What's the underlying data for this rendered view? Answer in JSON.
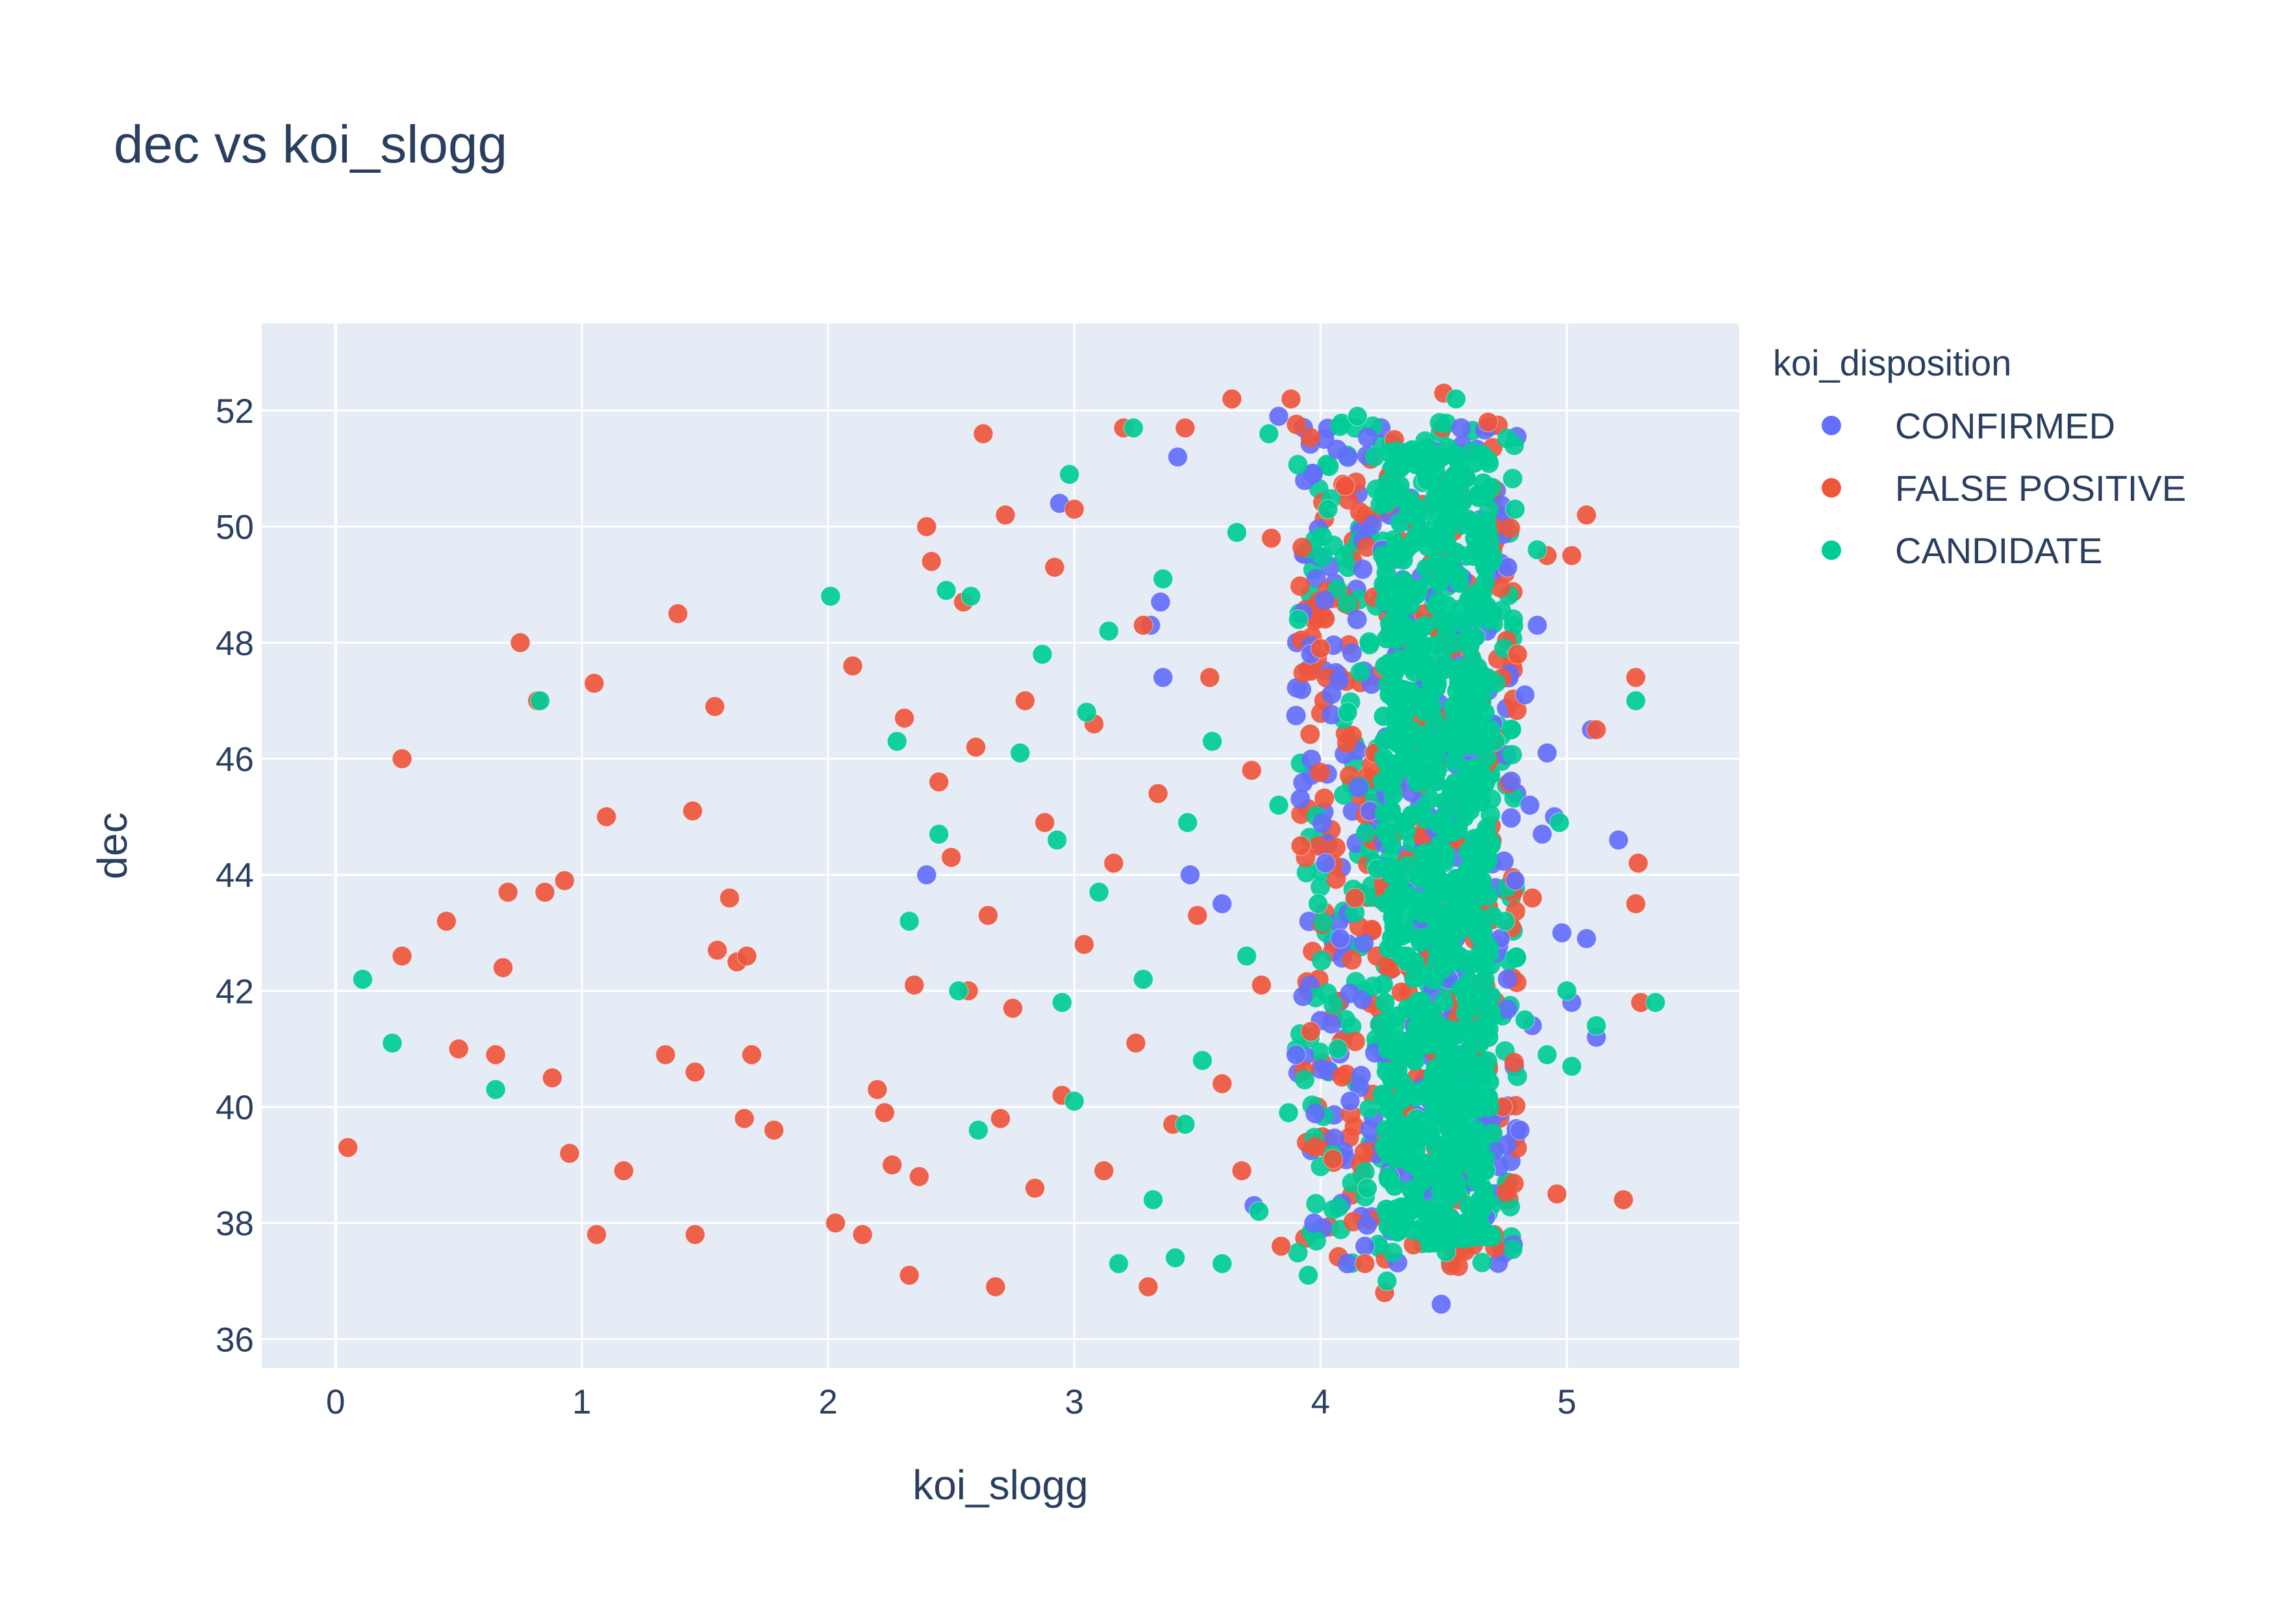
{
  "chart_data": {
    "type": "scatter",
    "title": "dec vs koi_slogg",
    "xlabel": "koi_slogg",
    "ylabel": "dec",
    "xlim": [
      -0.3,
      5.7
    ],
    "ylim": [
      35.5,
      53.5
    ],
    "x_ticks": [
      0,
      1,
      2,
      3,
      4,
      5
    ],
    "y_ticks": [
      36,
      38,
      40,
      42,
      44,
      46,
      48,
      50,
      52
    ],
    "grid": true,
    "background": "#e5ecf6",
    "legend": {
      "title": "koi_disposition",
      "position": "top-right"
    },
    "series": [
      {
        "name": "CONFIRMED",
        "color": "#636efa",
        "points": [
          [
            2.94,
            50.4
          ],
          [
            3.35,
            48.7
          ],
          [
            3.36,
            47.4
          ],
          [
            3.42,
            51.2
          ],
          [
            3.47,
            44.0
          ],
          [
            3.6,
            43.5
          ],
          [
            3.73,
            38.3
          ],
          [
            3.83,
            51.9
          ],
          [
            3.96,
            47.8
          ],
          [
            4.02,
            44.2
          ],
          [
            4.08,
            42.9
          ],
          [
            4.12,
            40.1
          ],
          [
            4.2,
            45.1
          ],
          [
            4.25,
            49.6
          ],
          [
            4.28,
            38.8
          ],
          [
            4.31,
            51.3
          ],
          [
            4.35,
            43.7
          ],
          [
            4.38,
            41.4
          ],
          [
            4.41,
            47.2
          ],
          [
            4.44,
            39.5
          ],
          [
            4.46,
            48.8
          ],
          [
            4.49,
            36.6
          ],
          [
            4.52,
            42.2
          ],
          [
            4.55,
            45.9
          ],
          [
            4.58,
            40.6
          ],
          [
            4.61,
            50.1
          ],
          [
            4.64,
            44.6
          ],
          [
            4.67,
            38.1
          ],
          [
            4.7,
            46.6
          ],
          [
            4.73,
            42.9
          ],
          [
            4.76,
            49.3
          ],
          [
            4.79,
            43.9
          ],
          [
            4.81,
            39.6
          ],
          [
            4.83,
            47.1
          ],
          [
            4.85,
            45.2
          ],
          [
            4.86,
            41.4
          ],
          [
            4.88,
            48.3
          ],
          [
            4.9,
            44.7
          ],
          [
            4.92,
            46.1
          ],
          [
            4.95,
            45.0
          ],
          [
            4.98,
            43.0
          ],
          [
            5.02,
            41.8
          ],
          [
            5.08,
            42.9
          ],
          [
            5.1,
            46.5
          ],
          [
            5.12,
            41.2
          ],
          [
            5.21,
            44.6
          ],
          [
            2.4,
            44.0
          ],
          [
            3.31,
            48.3
          ],
          [
            3.9,
            40.9
          ],
          [
            4.18,
            37.6
          ]
        ]
      },
      {
        "name": "FALSE POSITIVE",
        "color": "#ef553b",
        "points": [
          [
            0.05,
            39.3
          ],
          [
            0.27,
            46.0
          ],
          [
            0.27,
            42.6
          ],
          [
            0.45,
            43.2
          ],
          [
            0.5,
            41.0
          ],
          [
            0.65,
            40.9
          ],
          [
            0.68,
            42.4
          ],
          [
            0.7,
            43.7
          ],
          [
            0.75,
            48.0
          ],
          [
            0.82,
            47.0
          ],
          [
            0.85,
            43.7
          ],
          [
            0.88,
            40.5
          ],
          [
            0.93,
            43.9
          ],
          [
            0.95,
            39.2
          ],
          [
            1.05,
            47.3
          ],
          [
            1.06,
            37.8
          ],
          [
            1.1,
            45.0
          ],
          [
            1.17,
            38.9
          ],
          [
            1.34,
            40.9
          ],
          [
            1.39,
            48.5
          ],
          [
            1.45,
            45.1
          ],
          [
            1.46,
            40.6
          ],
          [
            1.46,
            37.8
          ],
          [
            1.54,
            46.9
          ],
          [
            1.55,
            42.7
          ],
          [
            1.6,
            43.6
          ],
          [
            1.63,
            42.5
          ],
          [
            1.67,
            42.6
          ],
          [
            1.69,
            40.9
          ],
          [
            1.66,
            39.8
          ],
          [
            1.78,
            39.6
          ],
          [
            2.03,
            38.0
          ],
          [
            2.1,
            47.6
          ],
          [
            2.14,
            37.8
          ],
          [
            2.2,
            40.3
          ],
          [
            2.23,
            39.9
          ],
          [
            2.31,
            46.7
          ],
          [
            2.35,
            42.1
          ],
          [
            2.37,
            38.8
          ],
          [
            2.42,
            49.4
          ],
          [
            2.4,
            50.0
          ],
          [
            2.45,
            45.6
          ],
          [
            2.5,
            44.3
          ],
          [
            2.55,
            48.7
          ],
          [
            2.6,
            46.2
          ],
          [
            2.63,
            51.6
          ],
          [
            2.65,
            43.3
          ],
          [
            2.68,
            36.9
          ],
          [
            2.72,
            50.2
          ],
          [
            2.75,
            41.7
          ],
          [
            2.8,
            47.0
          ],
          [
            2.84,
            38.6
          ],
          [
            2.88,
            44.9
          ],
          [
            2.92,
            49.3
          ],
          [
            2.95,
            40.2
          ],
          [
            3.0,
            50.3
          ],
          [
            3.04,
            42.8
          ],
          [
            3.08,
            46.6
          ],
          [
            3.12,
            38.9
          ],
          [
            3.16,
            44.2
          ],
          [
            3.2,
            51.7
          ],
          [
            3.25,
            41.1
          ],
          [
            3.28,
            48.3
          ],
          [
            3.3,
            36.9
          ],
          [
            3.34,
            45.4
          ],
          [
            3.4,
            39.7
          ],
          [
            3.45,
            51.7
          ],
          [
            3.5,
            43.3
          ],
          [
            3.55,
            47.4
          ],
          [
            3.6,
            40.4
          ],
          [
            3.64,
            52.2
          ],
          [
            3.68,
            38.9
          ],
          [
            3.72,
            45.8
          ],
          [
            3.76,
            42.1
          ],
          [
            3.8,
            49.8
          ],
          [
            3.84,
            37.6
          ],
          [
            3.88,
            52.2
          ],
          [
            3.92,
            44.5
          ],
          [
            3.96,
            41.3
          ],
          [
            4.0,
            47.9
          ],
          [
            4.05,
            39.1
          ],
          [
            4.1,
            50.7
          ],
          [
            4.14,
            43.6
          ],
          [
            4.18,
            37.3
          ],
          [
            4.22,
            46.1
          ],
          [
            4.26,
            36.8
          ],
          [
            4.3,
            51.5
          ],
          [
            4.36,
            42.4
          ],
          [
            4.42,
            48.5
          ],
          [
            4.5,
            52.3
          ],
          [
            4.56,
            38.4
          ],
          [
            4.62,
            45.5
          ],
          [
            4.68,
            51.8
          ],
          [
            4.74,
            40.0
          ],
          [
            4.8,
            47.8
          ],
          [
            4.86,
            43.6
          ],
          [
            4.92,
            49.5
          ],
          [
            4.96,
            38.5
          ],
          [
            5.02,
            49.5
          ],
          [
            5.08,
            50.2
          ],
          [
            5.12,
            46.5
          ],
          [
            5.23,
            38.4
          ],
          [
            5.28,
            47.4
          ],
          [
            5.29,
            44.2
          ],
          [
            5.28,
            43.5
          ],
          [
            5.3,
            41.8
          ],
          [
            2.26,
            39.0
          ],
          [
            2.33,
            37.1
          ],
          [
            2.57,
            42.0
          ],
          [
            2.7,
            39.8
          ]
        ]
      },
      {
        "name": "CANDIDATE",
        "color": "#00cc96",
        "points": [
          [
            0.11,
            42.2
          ],
          [
            0.23,
            41.1
          ],
          [
            0.65,
            40.3
          ],
          [
            0.83,
            47.0
          ],
          [
            2.01,
            48.8
          ],
          [
            2.28,
            46.3
          ],
          [
            2.33,
            43.2
          ],
          [
            2.48,
            48.9
          ],
          [
            2.53,
            42.0
          ],
          [
            2.58,
            48.8
          ],
          [
            2.61,
            39.6
          ],
          [
            2.78,
            46.1
          ],
          [
            2.87,
            47.8
          ],
          [
            2.93,
            44.6
          ],
          [
            2.98,
            50.9
          ],
          [
            3.0,
            40.1
          ],
          [
            3.05,
            46.8
          ],
          [
            3.1,
            43.7
          ],
          [
            3.18,
            37.3
          ],
          [
            3.24,
            51.7
          ],
          [
            3.28,
            42.2
          ],
          [
            3.32,
            38.4
          ],
          [
            3.36,
            49.1
          ],
          [
            3.41,
            37.4
          ],
          [
            3.46,
            44.9
          ],
          [
            3.52,
            40.8
          ],
          [
            3.56,
            46.3
          ],
          [
            3.6,
            37.3
          ],
          [
            3.66,
            49.9
          ],
          [
            3.7,
            42.6
          ],
          [
            3.75,
            38.2
          ],
          [
            3.79,
            51.6
          ],
          [
            3.83,
            45.2
          ],
          [
            3.87,
            39.9
          ],
          [
            3.91,
            48.4
          ],
          [
            3.95,
            37.1
          ],
          [
            3.99,
            43.5
          ],
          [
            4.03,
            50.3
          ],
          [
            4.07,
            41.0
          ],
          [
            4.11,
            46.8
          ],
          [
            4.15,
            51.9
          ],
          [
            4.19,
            38.6
          ],
          [
            4.23,
            44.1
          ],
          [
            4.27,
            37.0
          ],
          [
            4.31,
            48.9
          ],
          [
            4.35,
            42.5
          ],
          [
            4.39,
            39.8
          ],
          [
            4.43,
            50.8
          ],
          [
            4.47,
            45.6
          ],
          [
            4.51,
            37.5
          ],
          [
            4.55,
            52.2
          ],
          [
            4.59,
            41.9
          ],
          [
            4.63,
            48.1
          ],
          [
            4.67,
            38.9
          ],
          [
            4.71,
            46.3
          ],
          [
            4.75,
            43.2
          ],
          [
            4.79,
            50.3
          ],
          [
            4.83,
            41.5
          ],
          [
            4.88,
            49.6
          ],
          [
            4.92,
            40.9
          ],
          [
            4.97,
            44.9
          ],
          [
            5.0,
            42.0
          ],
          [
            5.02,
            40.7
          ],
          [
            5.12,
            41.4
          ],
          [
            5.28,
            47.0
          ],
          [
            5.36,
            41.8
          ],
          [
            2.45,
            44.7
          ],
          [
            2.95,
            41.8
          ],
          [
            3.14,
            48.2
          ],
          [
            3.45,
            39.7
          ]
        ]
      }
    ]
  }
}
